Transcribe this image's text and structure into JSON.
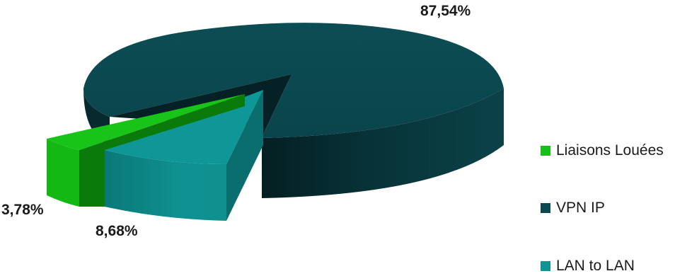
{
  "chart_data": {
    "type": "pie",
    "title": "",
    "style": "3d-exploded",
    "legend_position": "right",
    "slices": [
      {
        "name": "Liaisons Louées",
        "value": 3.78,
        "label": "3,78%",
        "color": "#16c016",
        "side_color": "#0a7d0a"
      },
      {
        "name": "VPN IP",
        "value": 87.54,
        "label": "87,54%",
        "color": "#0b4950",
        "side_color": "#062c30"
      },
      {
        "name": "LAN to LAN",
        "value": 8.68,
        "label": "8,68%",
        "color": "#0f9494",
        "side_color": "#0a6a6a"
      }
    ]
  }
}
